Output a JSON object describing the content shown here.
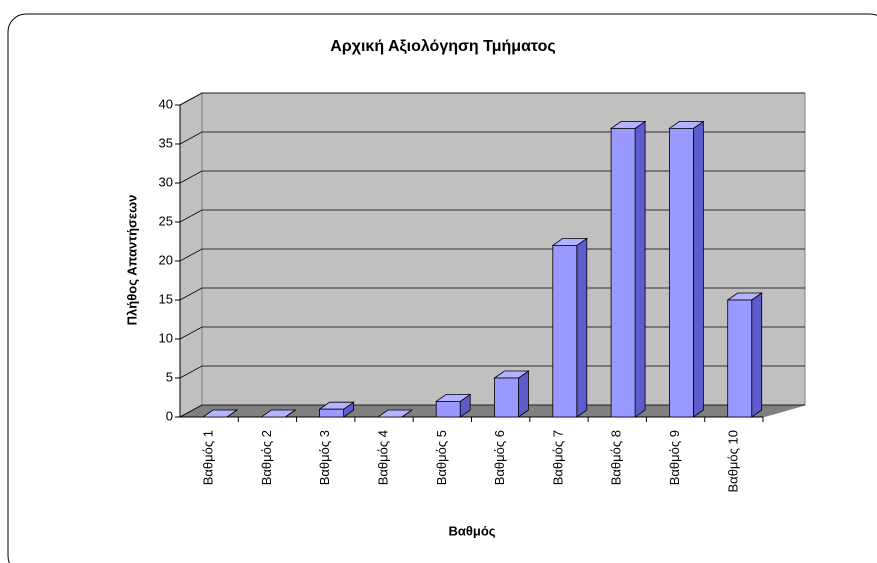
{
  "chart_data": {
    "type": "bar3d",
    "title": "Αρχική Αξιολόγηση Τμήματος",
    "x_label": "Βαθμός",
    "y_label": "Πλήθος Απαντήσεων",
    "categories": [
      "Βαθμός 1",
      "Βαθμός 2",
      "Βαθμός 3",
      "Βαθμός 4",
      "Βαθμός 5",
      "Βαθμός 6",
      "Βαθμός 7",
      "Βαθμός 8",
      "Βαθμός 9",
      "Βαθμός 10"
    ],
    "values": [
      0,
      0,
      1,
      0,
      2,
      5,
      22,
      37,
      37,
      15
    ],
    "color": "#9999ff",
    "ylim": [
      0,
      40
    ],
    "yticks": [
      0,
      5,
      10,
      15,
      20,
      25,
      30,
      35,
      40
    ],
    "grid": true
  }
}
